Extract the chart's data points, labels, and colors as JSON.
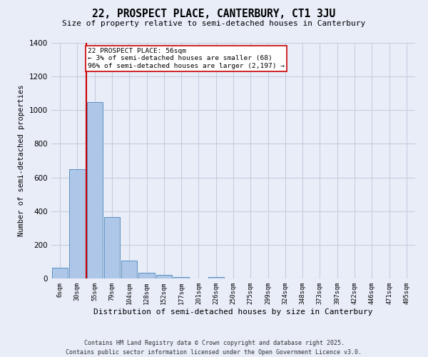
{
  "title": "22, PROSPECT PLACE, CANTERBURY, CT1 3JU",
  "subtitle": "Size of property relative to semi-detached houses in Canterbury",
  "xlabel": "Distribution of semi-detached houses by size in Canterbury",
  "ylabel": "Number of semi-detached properties",
  "categories": [
    "6sqm",
    "30sqm",
    "55sqm",
    "79sqm",
    "104sqm",
    "128sqm",
    "152sqm",
    "177sqm",
    "201sqm",
    "226sqm",
    "250sqm",
    "275sqm",
    "299sqm",
    "324sqm",
    "348sqm",
    "373sqm",
    "397sqm",
    "422sqm",
    "446sqm",
    "471sqm",
    "495sqm"
  ],
  "values": [
    65,
    650,
    1050,
    365,
    105,
    35,
    20,
    10,
    0,
    10,
    0,
    0,
    0,
    0,
    0,
    0,
    0,
    0,
    0,
    0,
    0
  ],
  "bar_color": "#aec6e8",
  "bar_edge_color": "#5a8fc0",
  "vline_x": 1.5,
  "vline_color": "#cc0000",
  "annotation_text": "22 PROSPECT PLACE: 56sqm\n← 3% of semi-detached houses are smaller (68)\n96% of semi-detached houses are larger (2,197) →",
  "annotation_box_color": "#ffffff",
  "annotation_box_edge": "#cc0000",
  "ylim": [
    0,
    1400
  ],
  "yticks": [
    0,
    200,
    400,
    600,
    800,
    1000,
    1200,
    1400
  ],
  "footer1": "Contains HM Land Registry data © Crown copyright and database right 2025.",
  "footer2": "Contains public sector information licensed under the Open Government Licence v3.0.",
  "bg_color": "#e8edf8",
  "grid_color": "#c5cde0"
}
